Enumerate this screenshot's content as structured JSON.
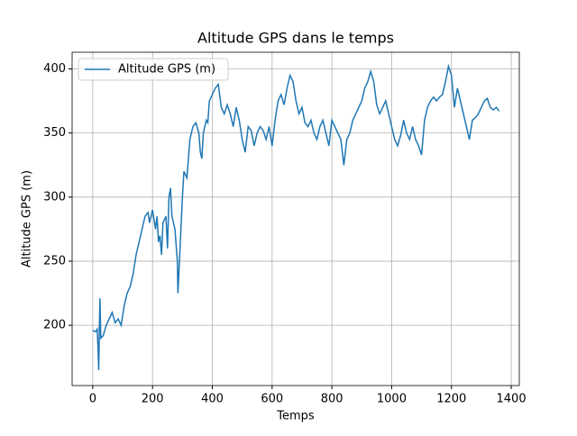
{
  "chart_data": {
    "type": "line",
    "title": "Altitude GPS dans le temps",
    "x_label": "Temps",
    "y_label": "Altitude GPS (m)",
    "x": [
      0,
      10,
      15,
      18,
      20,
      22,
      24,
      27,
      35,
      45,
      55,
      65,
      75,
      85,
      95,
      105,
      115,
      125,
      135,
      145,
      155,
      165,
      175,
      185,
      190,
      200,
      210,
      215,
      220,
      225,
      230,
      235,
      245,
      250,
      255,
      260,
      265,
      275,
      283,
      285,
      290,
      300,
      305,
      315,
      325,
      335,
      345,
      355,
      360,
      365,
      370,
      380,
      385,
      390,
      400,
      410,
      420,
      430,
      440,
      450,
      460,
      470,
      480,
      490,
      500,
      510,
      520,
      530,
      540,
      550,
      560,
      570,
      580,
      590,
      600,
      610,
      620,
      630,
      640,
      650,
      660,
      670,
      680,
      690,
      700,
      710,
      720,
      730,
      740,
      750,
      760,
      770,
      780,
      790,
      800,
      810,
      820,
      830,
      840,
      850,
      860,
      870,
      880,
      890,
      900,
      910,
      920,
      930,
      940,
      950,
      960,
      970,
      980,
      990,
      1000,
      1010,
      1020,
      1030,
      1040,
      1050,
      1060,
      1070,
      1080,
      1090,
      1100,
      1110,
      1120,
      1130,
      1140,
      1150,
      1160,
      1170,
      1180,
      1190,
      1200,
      1210,
      1220,
      1230,
      1240,
      1250,
      1260,
      1270,
      1280,
      1290,
      1300,
      1310,
      1320,
      1330,
      1340,
      1350,
      1360
    ],
    "series": [
      {
        "name": "Altitude GPS (m)",
        "color": "#1f77b4",
        "values": [
          196,
          195,
          197,
          180,
          165,
          195,
          221,
          190,
          192,
          200,
          205,
          210,
          202,
          205,
          200,
          215,
          225,
          230,
          240,
          255,
          265,
          275,
          285,
          288,
          280,
          290,
          275,
          285,
          265,
          270,
          255,
          280,
          285,
          260,
          300,
          307,
          285,
          275,
          250,
          225,
          250,
          300,
          320,
          315,
          345,
          355,
          358,
          350,
          335,
          330,
          350,
          360,
          358,
          375,
          380,
          385,
          388,
          370,
          365,
          372,
          365,
          355,
          370,
          360,
          345,
          335,
          355,
          352,
          340,
          350,
          355,
          352,
          345,
          355,
          340,
          360,
          375,
          380,
          372,
          385,
          395,
          390,
          375,
          365,
          370,
          358,
          355,
          360,
          350,
          345,
          355,
          360,
          350,
          340,
          360,
          355,
          350,
          345,
          325,
          345,
          350,
          360,
          365,
          370,
          375,
          385,
          390,
          398,
          390,
          372,
          365,
          370,
          375,
          365,
          355,
          345,
          340,
          348,
          360,
          350,
          345,
          355,
          345,
          340,
          333,
          360,
          370,
          375,
          378,
          375,
          378,
          380,
          390,
          402,
          395,
          370,
          385,
          375,
          365,
          355,
          345,
          360,
          362,
          365,
          370,
          375,
          377,
          370,
          368,
          370,
          367
        ]
      }
    ],
    "xlim": [
      -69,
      1427
    ],
    "ylim": [
      153,
      413
    ],
    "xticks": [
      0,
      200,
      400,
      600,
      800,
      1000,
      1200,
      1400
    ],
    "yticks": [
      200,
      250,
      300,
      350,
      400
    ],
    "grid": true,
    "legend": "upper left"
  }
}
